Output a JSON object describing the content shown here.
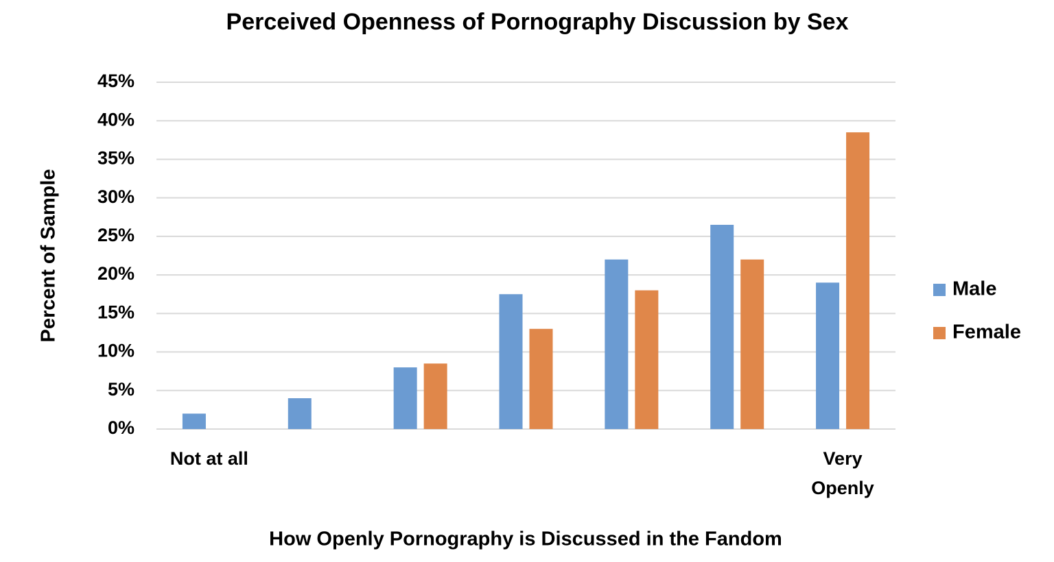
{
  "chart_data": {
    "type": "bar",
    "title": "Perceived Openness of Pornography Discussion by Sex",
    "x_label": "How Openly Pornography is Discussed in the Fandom",
    "y_label": "Percent of Sample",
    "categories": [
      "Not at all",
      null,
      null,
      null,
      null,
      null,
      "Very Openly"
    ],
    "series": [
      {
        "name": "Male",
        "color": "#6b9bd2",
        "values": [
          2,
          4,
          8,
          17.5,
          22,
          26.5,
          19
        ]
      },
      {
        "name": "Female",
        "color": "#e0874a",
        "values": [
          0,
          0,
          8.5,
          13,
          18,
          22,
          38.5
        ]
      }
    ],
    "ylim": [
      0,
      45
    ],
    "yticks": [
      {
        "value": 0,
        "label": "0%"
      },
      {
        "value": 5,
        "label": "5%"
      },
      {
        "value": 10,
        "label": "10%"
      },
      {
        "value": 15,
        "label": "15%"
      },
      {
        "value": 20,
        "label": "20%"
      },
      {
        "value": 25,
        "label": "25%"
      },
      {
        "value": 30,
        "label": "30%"
      },
      {
        "value": 35,
        "label": "35%"
      },
      {
        "value": 40,
        "label": "40%"
      },
      {
        "value": 45,
        "label": "45%"
      }
    ],
    "grid": true,
    "legend": "right"
  }
}
